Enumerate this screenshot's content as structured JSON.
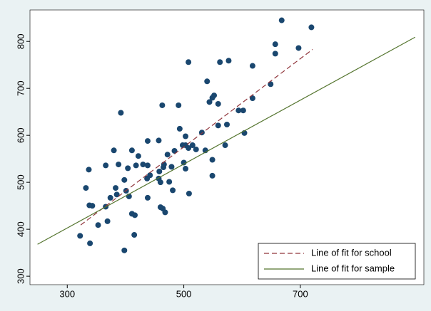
{
  "chart_data": {
    "type": "scatter",
    "xlim": [
      236,
      912
    ],
    "ylim": [
      282,
      867
    ],
    "xticks": [
      300,
      500,
      700
    ],
    "yticks": [
      300,
      400,
      500,
      600,
      700,
      800
    ],
    "grid": false,
    "legend": "bottom-right",
    "points": {
      "color": "#1a476f",
      "x": [
        668,
        719,
        657,
        697,
        657,
        508,
        562,
        577,
        618,
        540,
        549,
        552,
        544,
        559,
        463,
        491,
        392,
        594,
        602,
        618,
        649,
        493,
        531,
        503,
        574,
        559,
        604,
        438,
        457,
        498,
        571,
        503,
        508,
        515,
        521,
        537,
        484,
        380,
        411,
        422,
        472,
        549,
        366,
        388,
        418,
        430,
        438,
        466,
        465,
        479,
        503,
        337,
        404,
        458,
        442,
        500,
        437,
        457,
        398,
        460,
        475,
        549,
        383,
        332,
        401,
        481,
        509,
        385,
        374,
        406,
        438,
        366,
        338,
        343,
        411,
        416,
        460,
        464,
        468,
        369,
        353,
        322,
        415,
        339,
        398
      ],
      "y": [
        845,
        830,
        794,
        786,
        774,
        756,
        756,
        759,
        748,
        715,
        680,
        685,
        671,
        667,
        664,
        664,
        648,
        653,
        653,
        679,
        709,
        614,
        606,
        598,
        623,
        621,
        605,
        588,
        589,
        579,
        579,
        579,
        573,
        579,
        570,
        568,
        567,
        568,
        568,
        556,
        559,
        548,
        536,
        538,
        536,
        538,
        536,
        538,
        532,
        533,
        529,
        527,
        530,
        523,
        515,
        542,
        508,
        508,
        505,
        500,
        501,
        514,
        488,
        488,
        482,
        483,
        476,
        474,
        467,
        470,
        467,
        448,
        451,
        450,
        433,
        430,
        447,
        444,
        436,
        417,
        409,
        386,
        388,
        370,
        355
      ]
    },
    "series": [
      {
        "name": "Line of fit for school",
        "color": "#90353b",
        "dashed": true,
        "x": [
          323,
          721
        ],
        "y": [
          409,
          783
        ]
      },
      {
        "name": "Line of fit for sample",
        "color": "#55752f",
        "dashed": false,
        "x": [
          249,
          897
        ],
        "y": [
          368,
          809
        ]
      }
    ]
  }
}
